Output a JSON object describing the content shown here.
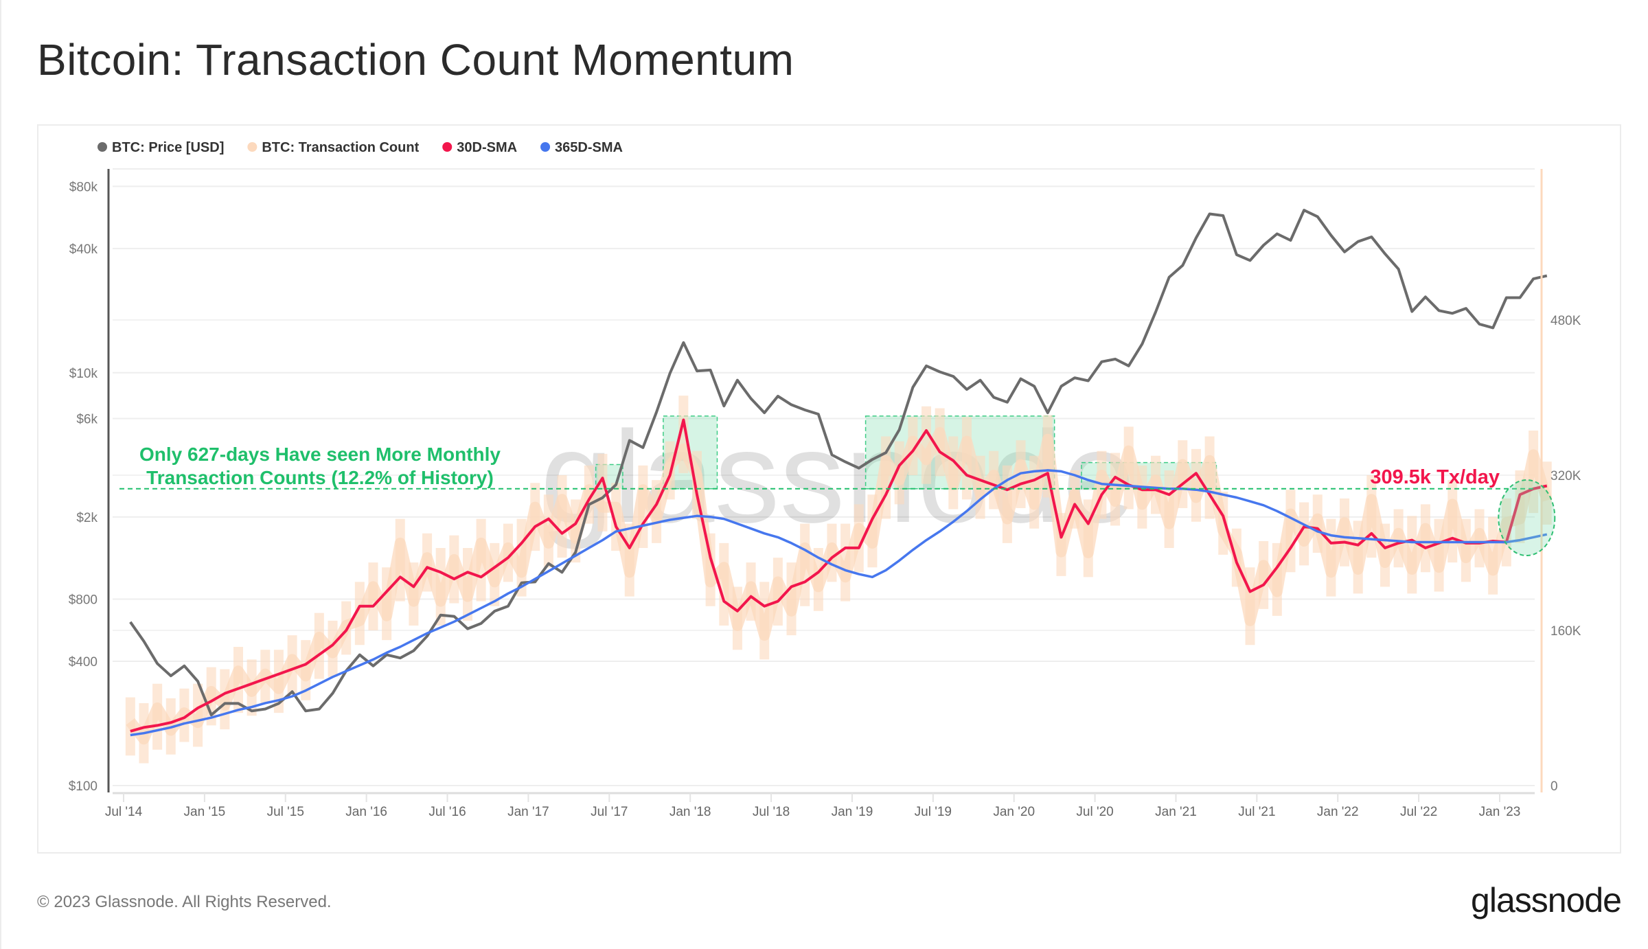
{
  "page": {
    "title": "Bitcoin: Transaction Count Momentum",
    "footer_copyright": "© 2023 Glassnode. All Rights Reserved.",
    "footer_logo": "glassnode",
    "watermark": "glassnode"
  },
  "chart_data": {
    "type": "line",
    "title": "Bitcoin: Transaction Count Momentum",
    "legend": {
      "placement": "top-left",
      "items": [
        {
          "label": "BTC: Price [USD]",
          "color": "#6b6b6b"
        },
        {
          "label": "BTC: Transaction Count",
          "color": "#fcd9bd"
        },
        {
          "label": "30D-SMA",
          "color": "#f2164c"
        },
        {
          "label": "365D-SMA",
          "color": "#4677ee"
        }
      ]
    },
    "x_ticks": [
      "Jul '14",
      "Jan '15",
      "Jul '15",
      "Jan '16",
      "Jul '16",
      "Jan '17",
      "Jul '17",
      "Jan '18",
      "Jul '18",
      "Jan '19",
      "Jul '19",
      "Jan '20",
      "Jul '20",
      "Jan '21",
      "Jul '21",
      "Jan '22",
      "Jul '22",
      "Jan '23"
    ],
    "y_left": {
      "scale": "log",
      "range": [
        100,
        80000
      ],
      "ticks": [
        "$80k",
        "$40k",
        "$10k",
        "$6k",
        "$2k",
        "$800",
        "$400",
        "$100"
      ],
      "tick_values": [
        80000,
        40000,
        10000,
        6000,
        2000,
        800,
        400,
        100
      ]
    },
    "y_right": {
      "scale": "linear",
      "range": [
        0,
        560000
      ],
      "ticks": [
        "480K",
        "320K",
        "160K",
        "0"
      ],
      "tick_values": [
        480000,
        320000,
        160000,
        0
      ]
    },
    "grid": true,
    "x": [
      "2014-07",
      "2014-08",
      "2014-09",
      "2014-10",
      "2014-11",
      "2014-12",
      "2015-01",
      "2015-02",
      "2015-03",
      "2015-04",
      "2015-05",
      "2015-06",
      "2015-07",
      "2015-08",
      "2015-09",
      "2015-10",
      "2015-11",
      "2015-12",
      "2016-01",
      "2016-02",
      "2016-03",
      "2016-04",
      "2016-05",
      "2016-06",
      "2016-07",
      "2016-08",
      "2016-09",
      "2016-10",
      "2016-11",
      "2016-12",
      "2017-01",
      "2017-02",
      "2017-03",
      "2017-04",
      "2017-05",
      "2017-06",
      "2017-07",
      "2017-08",
      "2017-09",
      "2017-10",
      "2017-11",
      "2017-12",
      "2018-01",
      "2018-02",
      "2018-03",
      "2018-04",
      "2018-05",
      "2018-06",
      "2018-07",
      "2018-08",
      "2018-09",
      "2018-10",
      "2018-11",
      "2018-12",
      "2019-01",
      "2019-02",
      "2019-03",
      "2019-04",
      "2019-05",
      "2019-06",
      "2019-07",
      "2019-08",
      "2019-09",
      "2019-10",
      "2019-11",
      "2019-12",
      "2020-01",
      "2020-02",
      "2020-03",
      "2020-04",
      "2020-05",
      "2020-06",
      "2020-07",
      "2020-08",
      "2020-09",
      "2020-10",
      "2020-11",
      "2020-12",
      "2021-01",
      "2021-02",
      "2021-03",
      "2021-04",
      "2021-05",
      "2021-06",
      "2021-07",
      "2021-08",
      "2021-09",
      "2021-10",
      "2021-11",
      "2021-12",
      "2022-01",
      "2022-02",
      "2022-03",
      "2022-04",
      "2022-05",
      "2022-06",
      "2022-07",
      "2022-08",
      "2022-09",
      "2022-10",
      "2022-11",
      "2022-12",
      "2023-01",
      "2023-02",
      "2023-03",
      "2023-04"
    ],
    "series": [
      {
        "name": "BTC: Price [USD]",
        "axis": "left",
        "color": "#6b6b6b",
        "values": [
          620,
          500,
          390,
          340,
          380,
          320,
          220,
          250,
          250,
          230,
          235,
          250,
          285,
          230,
          235,
          280,
          360,
          430,
          380,
          430,
          415,
          450,
          530,
          670,
          660,
          575,
          610,
          700,
          740,
          960,
          970,
          1190,
          1080,
          1350,
          2300,
          2480,
          2870,
          4700,
          4340,
          6450,
          9950,
          14000,
          10200,
          10300,
          6900,
          9200,
          7500,
          6400,
          7700,
          7000,
          6600,
          6300,
          4000,
          3700,
          3450,
          3800,
          4100,
          5300,
          8500,
          10800,
          10100,
          9600,
          8300,
          9200,
          7600,
          7200,
          9350,
          8600,
          6400,
          8600,
          9450,
          9140,
          11300,
          11650,
          10800,
          13800,
          19700,
          29000,
          33100,
          45000,
          58800,
          57700,
          37300,
          35000,
          41500,
          47100,
          43800,
          61300,
          57000,
          46300,
          38500,
          43200,
          45500,
          37700,
          31800,
          19800,
          23300,
          20000,
          19400,
          20500,
          17200,
          16500,
          23100,
          23100,
          28500,
          29500
        ]
      },
      {
        "name": "BTC: Transaction Count",
        "axis": "right",
        "unit": "k tx/day",
        "color": "#fcd9bd",
        "values": [
          66,
          48,
          80,
          57,
          75,
          65,
          97,
          83,
          118,
          97,
          115,
          100,
          130,
          113,
          153,
          137,
          165,
          170,
          205,
          175,
          250,
          190,
          235,
          190,
          233,
          195,
          250,
          210,
          245,
          220,
          287,
          250,
          295,
          255,
          305,
          287,
          287,
          220,
          305,
          275,
          330,
          347,
          320,
          210,
          225,
          165,
          205,
          155,
          210,
          180,
          245,
          205,
          245,
          215,
          265,
          250,
          335,
          315,
          355,
          336,
          364,
          310,
          355,
          300,
          320,
          275,
          331,
          290,
          357,
          241,
          300,
          240,
          320,
          293,
          345,
          290,
          315,
          270,
          331,
          297,
          335,
          263,
          240,
          170,
          227,
          200,
          280,
          252,
          275,
          220,
          271,
          223,
          295,
          230,
          260,
          223,
          265,
          225,
          290,
          235,
          260,
          222,
          271,
          275,
          341,
          294
        ]
      },
      {
        "name": "30D-SMA",
        "axis": "right",
        "unit": "k tx/day",
        "color": "#f2164c",
        "values": [
          56,
          60,
          62,
          65,
          70,
          80,
          87,
          95,
          100,
          105,
          110,
          115,
          120,
          125,
          135,
          145,
          160,
          185,
          185,
          200,
          215,
          205,
          225,
          220,
          213,
          220,
          215,
          225,
          235,
          250,
          267,
          275,
          260,
          270,
          295,
          317,
          267,
          245,
          270,
          290,
          320,
          377,
          300,
          235,
          190,
          180,
          195,
          185,
          190,
          205,
          210,
          220,
          235,
          245,
          245,
          275,
          300,
          330,
          345,
          366,
          344,
          335,
          320,
          315,
          310,
          305,
          311,
          315,
          322,
          256,
          290,
          270,
          300,
          318,
          310,
          305,
          305,
          300,
          311,
          322,
          300,
          278,
          230,
          200,
          207,
          225,
          245,
          267,
          265,
          250,
          251,
          248,
          260,
          245,
          250,
          253,
          245,
          250,
          255,
          250,
          250,
          252,
          251,
          300,
          306,
          309
        ]
      },
      {
        "name": "365D-SMA",
        "axis": "right",
        "unit": "k tx/day",
        "color": "#4677ee",
        "values": [
          52,
          54,
          57,
          60,
          64,
          67,
          70,
          74,
          78,
          81,
          85,
          88,
          92,
          98,
          105,
          112,
          118,
          124,
          130,
          137,
          143,
          150,
          157,
          163,
          169,
          176,
          183,
          190,
          198,
          205,
          213,
          221,
          229,
          237,
          245,
          253,
          262,
          265,
          268,
          271,
          274,
          276,
          278,
          277,
          275,
          270,
          265,
          260,
          256,
          250,
          243,
          235,
          228,
          222,
          218,
          215,
          222,
          232,
          243,
          253,
          262,
          272,
          283,
          295,
          306,
          315,
          322,
          324,
          325,
          324,
          320,
          315,
          311,
          310,
          309,
          308,
          307,
          306,
          306,
          305,
          303,
          300,
          297,
          293,
          289,
          283,
          276,
          269,
          262,
          258,
          256,
          255,
          254,
          253,
          252,
          251,
          251,
          251,
          251,
          251,
          251,
          251,
          251,
          253,
          256,
          259
        ]
      }
    ],
    "annotations": {
      "threshold_k": 306,
      "threshold_color": "#1fbf6b",
      "threshold_text": [
        "Only 627-days Have seen More Monthly",
        "Transaction Counts (12.2% of History)"
      ],
      "current_value_text": "309.5k Tx/day",
      "current_value_color": "#f2164c",
      "highlight_regions": [
        {
          "start": "2017-06",
          "end": "2017-07",
          "top_k": 331
        },
        {
          "start": "2017-11",
          "end": "2018-02",
          "top_k": 381
        },
        {
          "start": "2019-02",
          "end": "2020-03",
          "top_k": 381
        },
        {
          "start": "2020-06",
          "end": "2021-03",
          "top_k": 333
        }
      ],
      "highlight_current": {
        "start": "2023-01",
        "end": "2023-04"
      }
    }
  }
}
